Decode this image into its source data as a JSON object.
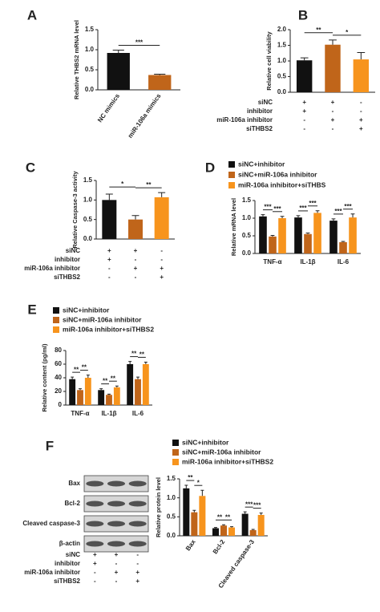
{
  "chart_data": [
    {
      "type": "bar",
      "panel": "A",
      "ylabel": "Relative THBS2 mRNA level",
      "categories": [
        "NC mimics",
        "miR-106a mimics"
      ],
      "values": [
        0.92,
        0.37
      ],
      "errors": [
        0.07,
        0.02
      ],
      "colors": [
        "#111111",
        "#c0651a"
      ],
      "ylim": [
        0,
        1.5
      ],
      "yticks": [
        {
          "value": 0,
          "label": "0.0"
        },
        0.5,
        {
          "value": 1,
          "label": "1.0"
        },
        1.5
      ],
      "annotations": [
        "***"
      ]
    },
    {
      "type": "bar",
      "panel": "B",
      "ylabel": "Relative cell viability",
      "categories": [
        null,
        null,
        null
      ],
      "values": [
        1.02,
        1.52,
        1.05
      ],
      "errors": [
        0.08,
        0.15,
        0.22
      ],
      "colors": [
        "#111111",
        "#c0651a",
        "#f7941d"
      ],
      "ylim": [
        0,
        2
      ],
      "yticks": [
        {
          "value": 0,
          "label": "0.0"
        },
        0.5,
        {
          "value": 1,
          "label": "1.0"
        },
        1.5,
        {
          "value": 2,
          "label": "2.0"
        }
      ],
      "annotations": [
        "**",
        "*"
      ],
      "conditions": [
        {
          "label": "siNC",
          "signs": [
            "+",
            "+",
            "-"
          ]
        },
        {
          "label": "inhibitor",
          "signs": [
            "+",
            "-",
            "-"
          ]
        },
        {
          "label": "miR-106a inhibitor",
          "signs": [
            "-",
            "+",
            "+"
          ]
        },
        {
          "label": "siTHBS2",
          "signs": [
            "-",
            "-",
            "+"
          ]
        }
      ]
    },
    {
      "type": "bar",
      "panel": "C",
      "ylabel": "Relative Caspase-3 activity",
      "categories": [
        null,
        null,
        null
      ],
      "values": [
        1.0,
        0.5,
        1.07
      ],
      "errors": [
        0.15,
        0.1,
        0.12
      ],
      "colors": [
        "#111111",
        "#c0651a",
        "#f7941d"
      ],
      "ylim": [
        0,
        1.5
      ],
      "yticks": [
        {
          "value": 0,
          "label": "0.0"
        },
        0.5,
        {
          "value": 1,
          "label": "1.0"
        },
        1.5
      ],
      "annotations": [
        "*",
        "**"
      ],
      "conditions": [
        {
          "label": "siNC",
          "signs": [
            "+",
            "+",
            "-"
          ]
        },
        {
          "label": "inhibitor",
          "signs": [
            "+",
            "-",
            "-"
          ]
        },
        {
          "label": "miR-106a inhibitor",
          "signs": [
            "-",
            "+",
            "+"
          ]
        },
        {
          "label": "siTHBS2",
          "signs": [
            "-",
            "-",
            "+"
          ]
        }
      ]
    },
    {
      "type": "grouped_bar",
      "panel": "D",
      "ylabel": "Relative mRNA level",
      "categories": [
        "TNF-α",
        "IL-1β",
        "IL-6"
      ],
      "series": [
        {
          "name": "siNC+inhibitor",
          "color": "#111111",
          "values": [
            1.05,
            1.02,
            0.93
          ],
          "errors": [
            0.05,
            0.05,
            0.05
          ]
        },
        {
          "name": "siNC+miR-106a inhibitor",
          "color": "#c0651a",
          "values": [
            0.48,
            0.55,
            0.32
          ],
          "errors": [
            0.03,
            0.03,
            0.02
          ]
        },
        {
          "name": "miR-106a inhibitor+siTHBS",
          "color": "#f7941d",
          "values": [
            1.0,
            1.15,
            1.02
          ],
          "errors": [
            0.05,
            0.06,
            0.1
          ]
        }
      ],
      "ylim": [
        0,
        1.5
      ],
      "yticks": [
        {
          "value": 0,
          "label": "0.0"
        },
        0.5,
        {
          "value": 1,
          "label": "1.0"
        },
        1.5
      ],
      "annotations": [
        "***",
        "***",
        "***",
        "***",
        "***",
        "***"
      ]
    },
    {
      "type": "grouped_bar",
      "panel": "E",
      "ylabel": "Relative content (pg/ml)",
      "categories": [
        "TNF-α",
        "IL-1β",
        "IL-6"
      ],
      "series": [
        {
          "name": "siNC+inhibitor",
          "color": "#111111",
          "values": [
            38,
            22,
            60
          ],
          "errors": [
            3,
            2,
            4
          ]
        },
        {
          "name": "siNC+miR-106a inhibitor",
          "color": "#c0651a",
          "values": [
            22,
            15,
            38
          ],
          "errors": [
            2,
            1,
            3
          ]
        },
        {
          "name": "miR-106a inhibitor+siTHBS2",
          "color": "#f7941d",
          "values": [
            40,
            26,
            60
          ],
          "errors": [
            4,
            2,
            3
          ]
        }
      ],
      "ylim": [
        0,
        80
      ],
      "yticks": [
        0,
        20,
        40,
        60,
        80
      ],
      "annotations": [
        "**",
        "**",
        "**",
        "**",
        "**",
        "**"
      ]
    },
    {
      "type": "grouped_bar",
      "panel": "F",
      "ylabel": "Relative protein level",
      "categories": [
        "Bax",
        "Bcl-2",
        "Cleaved caspase-3"
      ],
      "series": [
        {
          "name": "siNC+inhibitor",
          "color": "#111111",
          "values": [
            1.25,
            0.2,
            0.58
          ],
          "errors": [
            0.08,
            0.02,
            0.05
          ]
        },
        {
          "name": "siNC+miR-106a inhibitor",
          "color": "#c0651a",
          "values": [
            0.62,
            0.27,
            0.15
          ],
          "errors": [
            0.05,
            0.02,
            0.02
          ]
        },
        {
          "name": "miR-106a inhibitor+siTHBS2",
          "color": "#f7941d",
          "values": [
            1.05,
            0.22,
            0.55
          ],
          "errors": [
            0.15,
            0.02,
            0.05
          ]
        }
      ],
      "ylim": [
        0,
        1.5
      ],
      "yticks": [
        {
          "value": 0,
          "label": "0.0"
        },
        0.5,
        {
          "value": 1,
          "label": "1.0"
        },
        1.5
      ],
      "annotations": [
        "**",
        "*",
        "**",
        "**",
        "***",
        "***"
      ],
      "blot_labels": [
        "Bax",
        "Bcl-2",
        "Cleaved caspase-3",
        "β-actin"
      ],
      "conditions": [
        {
          "label": "siNC",
          "signs": [
            "+",
            "+",
            "-"
          ]
        },
        {
          "label": "inhibitor",
          "signs": [
            "+",
            "-",
            "-"
          ]
        },
        {
          "label": "miR-106a inhibitor",
          "signs": [
            "-",
            "+",
            "+"
          ]
        },
        {
          "label": "siTHBS2",
          "signs": [
            "-",
            "-",
            "+"
          ]
        }
      ]
    }
  ]
}
